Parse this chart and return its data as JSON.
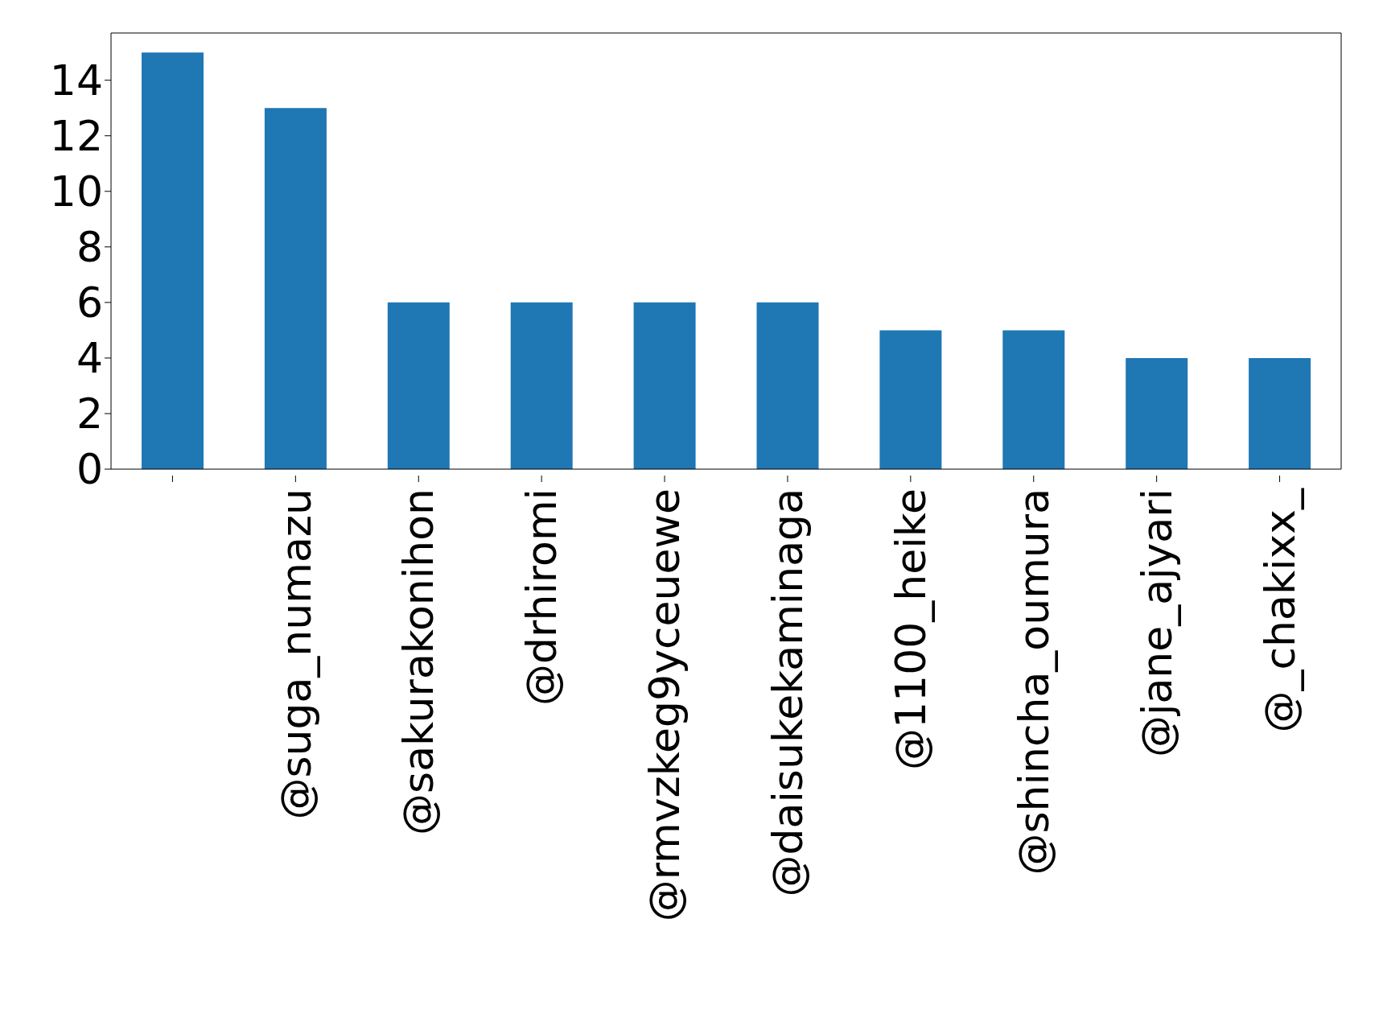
{
  "chart_data": {
    "type": "bar",
    "categories": [
      null,
      "@suga_numazu",
      "@sakurakonihon",
      "@drhiromi",
      "@rmvzkeg9yceuewe",
      "@daisukekaminaga",
      "@1100_heike",
      "@shincha_oumura",
      "@jane_ajyari",
      "@_chakixx_"
    ],
    "values": [
      15,
      13,
      6,
      6,
      6,
      6,
      5,
      5,
      4,
      4
    ],
    "color": "#1f77b4",
    "ylim": [
      0,
      15.7
    ],
    "yticks": [
      0,
      2,
      4,
      6,
      8,
      10,
      12,
      14
    ],
    "grid": false
  }
}
